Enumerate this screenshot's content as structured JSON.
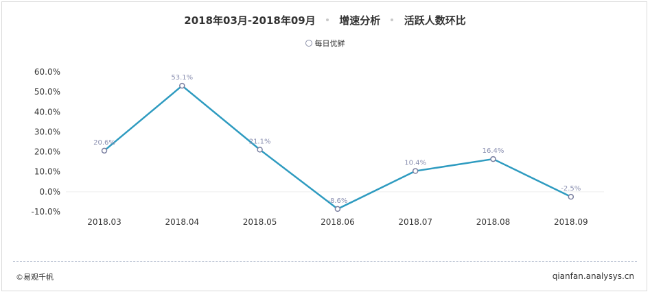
{
  "header": {
    "title_main": "2018年03月-2018年09月",
    "title_sub1": "增速分析",
    "title_sub2": "活跃人数环比"
  },
  "footer": {
    "source": "©易观千帆",
    "site": "qianfan.analysys.cn"
  },
  "colors": {
    "line": "#2e9bc0",
    "marker_stroke": "#7a7fa0",
    "label": "#8a8fb0",
    "zero_line": "#eeeeee"
  },
  "chart_data": {
    "type": "line",
    "categories": [
      "2018.03",
      "2018.04",
      "2018.05",
      "2018.06",
      "2018.07",
      "2018.08",
      "2018.09"
    ],
    "series": [
      {
        "name": "每日优鲜",
        "values": [
          20.6,
          53.1,
          21.1,
          -8.6,
          10.4,
          16.4,
          -2.5
        ],
        "labels": [
          "20.6%",
          "53.1%",
          "21.1%",
          "-8.6%",
          "10.4%",
          "16.4%",
          "-2.5%"
        ]
      }
    ],
    "yticks": [
      "60.0%",
      "50.0%",
      "40.0%",
      "30.0%",
      "20.0%",
      "10.0%",
      "0.0%",
      "-10.0%"
    ],
    "ylim": [
      -10,
      60
    ],
    "grid": false,
    "legend": "top-center"
  }
}
